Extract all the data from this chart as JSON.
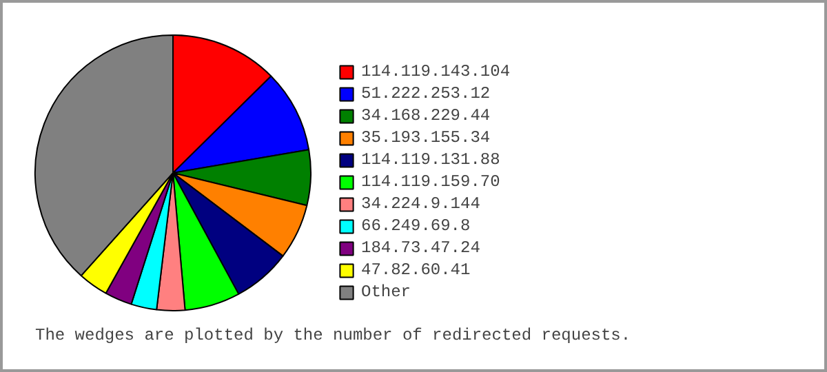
{
  "chart_data": {
    "type": "pie",
    "categories": [
      "114.119.143.104",
      "51.222.253.12",
      "34.168.229.44",
      "35.193.155.34",
      "114.119.131.88",
      "114.119.159.70",
      "34.224.9.144",
      "66.249.69.8",
      "184.73.47.24",
      "47.82.60.41",
      "Other"
    ],
    "values": [
      12.6,
      9.7,
      6.5,
      6.5,
      6.8,
      6.5,
      3.3,
      3.0,
      3.2,
      3.5,
      38.4
    ],
    "colors": [
      "#ff0000",
      "#0000ff",
      "#008000",
      "#ff8000",
      "#000080",
      "#00ff00",
      "#ff8080",
      "#00ffff",
      "#800080",
      "#ffff00",
      "#808080"
    ],
    "legend": "right",
    "annotations": [
      "The wedges are plotted by the number of redirected requests."
    ]
  }
}
